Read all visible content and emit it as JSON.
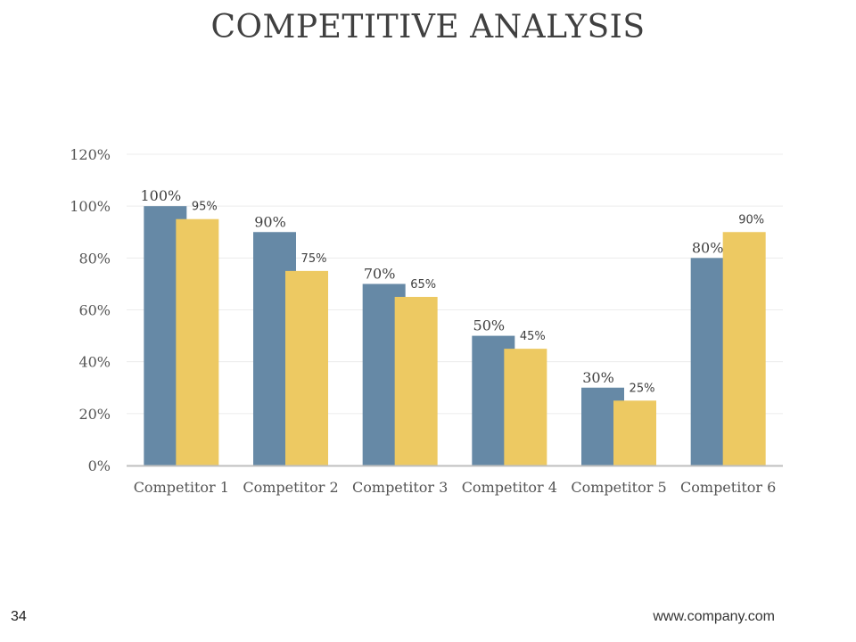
{
  "slide": {
    "title": "COMPETITIVE ANALYSIS",
    "page_number": "34",
    "footer_url": "www.company.com"
  },
  "chart_data": {
    "type": "bar",
    "categories": [
      "Competitor 1",
      "Competitor 2",
      "Competitor 3",
      "Competitor 4",
      "Competitor 5",
      "Competitor 6"
    ],
    "series": [
      {
        "values": [
          100,
          90,
          70,
          50,
          30,
          80
        ],
        "color": "#6689A6",
        "data_labels": [
          "100%",
          "90%",
          "70%",
          "50%",
          "30%",
          "80%"
        ]
      },
      {
        "values": [
          95,
          75,
          65,
          45,
          25,
          90
        ],
        "color": "#EDC962",
        "data_labels": [
          "95%",
          "75%",
          "65%",
          "45%",
          "25%",
          "90%"
        ]
      }
    ],
    "y_ticks": [
      "0%",
      "20%",
      "40%",
      "60%",
      "80%",
      "100%",
      "120%"
    ],
    "ylim": [
      0,
      120
    ],
    "grid": true,
    "legend": "none"
  }
}
